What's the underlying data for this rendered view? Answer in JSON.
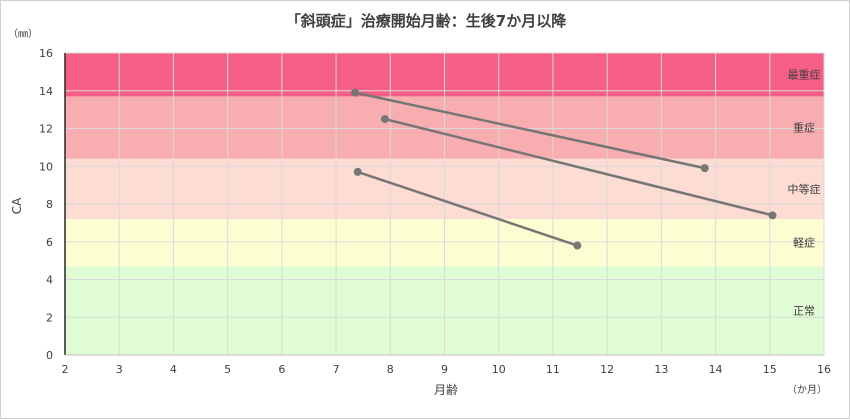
{
  "chart_data": {
    "type": "line",
    "title": "「斜頭症」治療開始月齢：生後7か月以降",
    "xlabel": "月齢",
    "ylabel": "CA",
    "x_unit": "（か月）",
    "y_unit": "（㎜）",
    "xlim": [
      2,
      16
    ],
    "ylim": [
      0,
      16
    ],
    "x_ticks": [
      2,
      3,
      4,
      5,
      6,
      7,
      8,
      9,
      10,
      11,
      12,
      13,
      14,
      15,
      16
    ],
    "y_ticks": [
      0,
      2,
      4,
      6,
      8,
      10,
      12,
      14,
      16
    ],
    "grid": true,
    "bands": [
      {
        "label": "正常",
        "from": 0,
        "to": 4.7,
        "color": "#dffcd4"
      },
      {
        "label": "軽症",
        "from": 4.7,
        "to": 7.2,
        "color": "#fdfdd2"
      },
      {
        "label": "中等症",
        "from": 7.2,
        "to": 10.4,
        "color": "#fcdcd3"
      },
      {
        "label": "重症",
        "from": 10.4,
        "to": 13.7,
        "color": "#f8adb0"
      },
      {
        "label": "最重症",
        "from": 13.7,
        "to": 16,
        "color": "#f75e86"
      }
    ],
    "series": [
      {
        "x": [
          7.35,
          13.8
        ],
        "y": [
          13.9,
          9.9
        ]
      },
      {
        "x": [
          7.9,
          15.05
        ],
        "y": [
          12.5,
          7.4
        ]
      },
      {
        "x": [
          7.4,
          11.45
        ],
        "y": [
          9.7,
          5.8
        ]
      }
    ],
    "line_color": "#767676"
  }
}
